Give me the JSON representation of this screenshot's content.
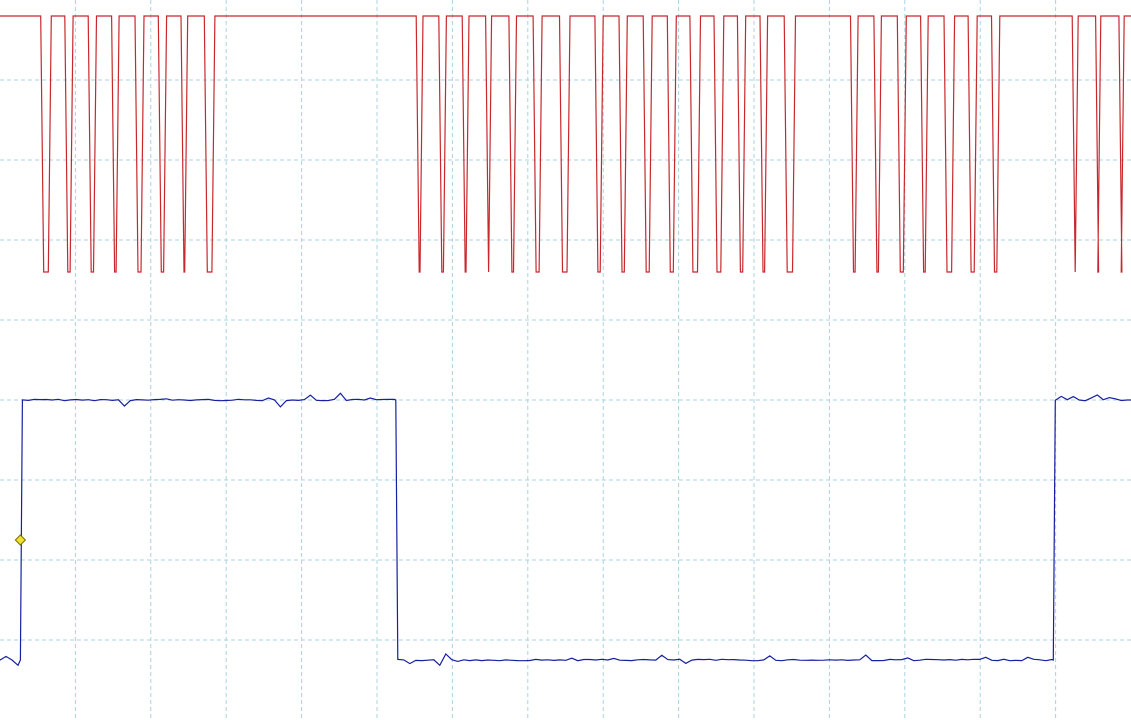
{
  "chart_data": {
    "type": "line",
    "title": "",
    "xlabel": "",
    "ylabel": "",
    "grid": true,
    "x_divisions": 15,
    "y_divisions": 9,
    "colors": {
      "background": "#ffffff",
      "grid": "#a9d3e0",
      "channel_1": "#c8282d",
      "channel_2": "#1620a0",
      "trigger_marker": "#f0e030"
    },
    "y_range": [
      0,
      9
    ],
    "x_range": [
      0,
      15
    ],
    "series": [
      {
        "channel": 1,
        "high": 8.8,
        "low": 5.6,
        "low_pulses": [
          [
            0.54,
            0.68
          ],
          [
            0.86,
            0.97
          ],
          [
            1.17,
            1.28
          ],
          [
            1.48,
            1.58
          ],
          [
            1.79,
            1.91
          ],
          [
            2.1,
            2.21
          ],
          [
            2.4,
            2.49
          ],
          [
            2.71,
            2.85
          ],
          [
            5.52,
            5.61
          ],
          [
            5.82,
            5.92
          ],
          [
            6.13,
            6.22
          ],
          [
            6.44,
            6.52
          ],
          [
            6.75,
            6.85
          ],
          [
            7.07,
            7.19
          ],
          [
            7.42,
            7.56
          ],
          [
            7.89,
            8.0
          ],
          [
            8.21,
            8.32
          ],
          [
            8.53,
            8.65
          ],
          [
            8.85,
            8.97
          ],
          [
            9.15,
            9.29
          ],
          [
            9.47,
            9.6
          ],
          [
            9.78,
            9.89
          ],
          [
            10.08,
            10.18
          ],
          [
            10.4,
            10.55
          ],
          [
            11.28,
            11.38
          ],
          [
            11.59,
            11.69
          ],
          [
            11.9,
            12.02
          ],
          [
            12.21,
            12.31
          ],
          [
            12.52,
            12.66
          ],
          [
            12.84,
            12.96
          ],
          [
            13.15,
            13.26
          ],
          [
            14.22,
            14.3
          ],
          [
            14.53,
            14.6
          ],
          [
            14.84,
            14.91
          ]
        ]
      },
      {
        "channel": 2,
        "high": 4.0,
        "low": 0.75,
        "transitions": [
          {
            "x": 0.27,
            "to": "high"
          },
          {
            "x": 5.25,
            "to": "low"
          },
          {
            "x": 13.97,
            "to": "high"
          }
        ]
      }
    ],
    "trigger": {
      "x": 0.27,
      "y": 2.25
    }
  }
}
